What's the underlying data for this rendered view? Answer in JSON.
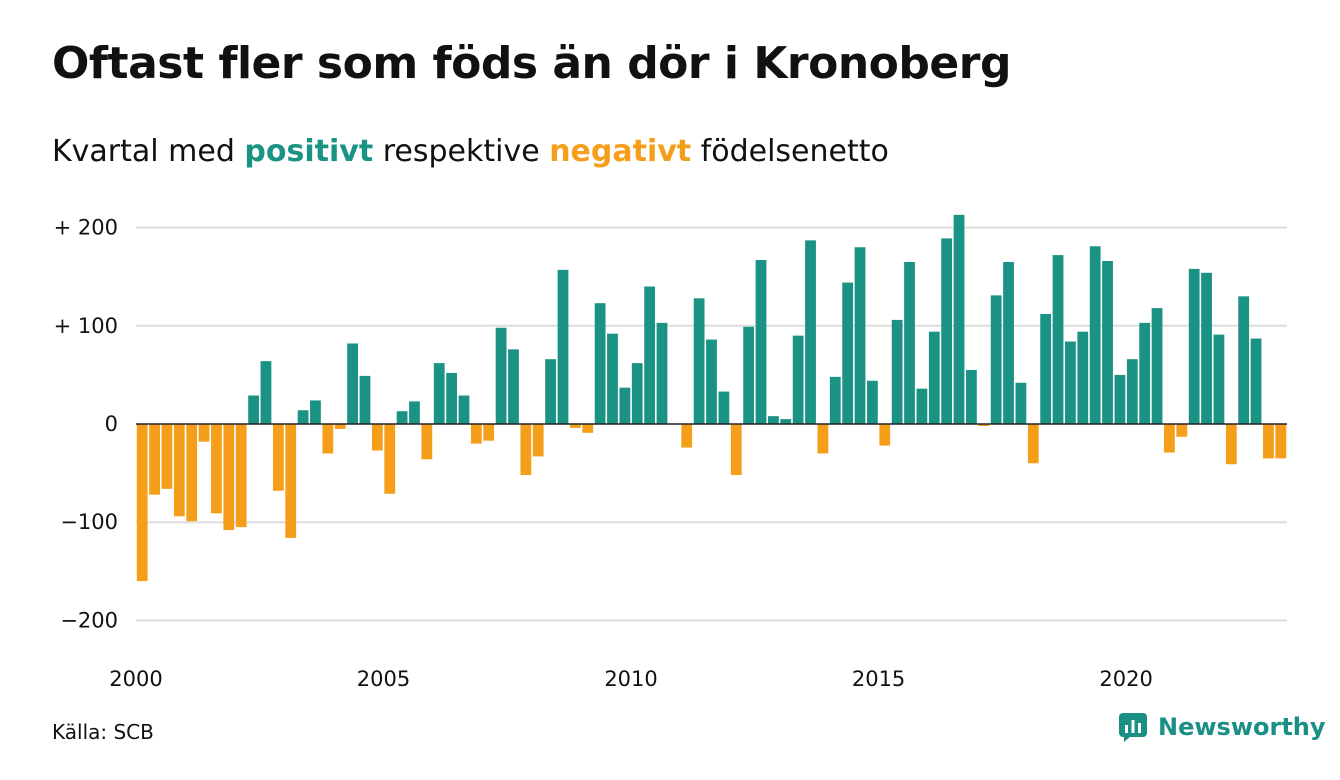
{
  "title": "Oftast fler som föds än dör i Kronoberg",
  "subtitle": {
    "prefix": "Kvartal med ",
    "positive": "positivt",
    "middle": " respektive ",
    "negative": "negativt",
    "suffix": " födelsenetto"
  },
  "colors": {
    "positive": "#1a9284",
    "negative": "#f59e1a",
    "grid": "#dddddd",
    "zero_line": "#222222",
    "text": "#111111"
  },
  "source": "Källa: SCB",
  "brand": {
    "name": "Newsworthy",
    "icon": "newsworthy-logo-icon"
  },
  "chart_data": {
    "type": "bar",
    "title": "Oftast fler som föds än dör i Kronoberg",
    "xlabel": "",
    "ylabel": "",
    "ylim": [
      -230,
      230
    ],
    "xlim": [
      2000,
      2023.25
    ],
    "yticks": [
      {
        "value": 200,
        "label": "+ 200"
      },
      {
        "value": 100,
        "label": "+ 100"
      },
      {
        "value": 0,
        "label": "0"
      },
      {
        "value": -100,
        "label": "−100"
      },
      {
        "value": -200,
        "label": "−200"
      }
    ],
    "xticks": [
      {
        "value": 2000,
        "label": "2000"
      },
      {
        "value": 2005,
        "label": "2005"
      },
      {
        "value": 2010,
        "label": "2010"
      },
      {
        "value": 2015,
        "label": "2015"
      },
      {
        "value": 2020,
        "label": "2020"
      }
    ],
    "grid": true,
    "x_unit": "quarter (year + quarter fraction)",
    "categories": [
      "2000 Q1",
      "2000 Q2",
      "2000 Q3",
      "2000 Q4",
      "2001 Q1",
      "2001 Q2",
      "2001 Q3",
      "2001 Q4",
      "2002 Q1",
      "2002 Q2",
      "2002 Q3",
      "2002 Q4",
      "2003 Q1",
      "2003 Q2",
      "2003 Q3",
      "2003 Q4",
      "2004 Q1",
      "2004 Q2",
      "2004 Q3",
      "2004 Q4",
      "2005 Q1",
      "2005 Q2",
      "2005 Q3",
      "2005 Q4",
      "2006 Q1",
      "2006 Q2",
      "2006 Q3",
      "2006 Q4",
      "2007 Q1",
      "2007 Q2",
      "2007 Q3",
      "2007 Q4",
      "2008 Q1",
      "2008 Q2",
      "2008 Q3",
      "2008 Q4",
      "2009 Q1",
      "2009 Q2",
      "2009 Q3",
      "2009 Q4",
      "2010 Q1",
      "2010 Q2",
      "2010 Q3",
      "2010 Q4",
      "2011 Q1",
      "2011 Q2",
      "2011 Q3",
      "2011 Q4",
      "2012 Q1",
      "2012 Q2",
      "2012 Q3",
      "2012 Q4",
      "2013 Q1",
      "2013 Q2",
      "2013 Q3",
      "2013 Q4",
      "2014 Q1",
      "2014 Q2",
      "2014 Q3",
      "2014 Q4",
      "2015 Q1",
      "2015 Q2",
      "2015 Q3",
      "2015 Q4",
      "2016 Q1",
      "2016 Q2",
      "2016 Q3",
      "2016 Q4",
      "2017 Q1",
      "2017 Q2",
      "2017 Q3",
      "2017 Q4",
      "2018 Q1",
      "2018 Q2",
      "2018 Q3",
      "2018 Q4",
      "2019 Q1",
      "2019 Q2",
      "2019 Q3",
      "2019 Q4",
      "2020 Q1",
      "2020 Q2",
      "2020 Q3",
      "2020 Q4",
      "2021 Q1",
      "2021 Q2",
      "2021 Q3",
      "2021 Q4",
      "2022 Q1",
      "2022 Q2",
      "2022 Q3",
      "2022 Q4",
      "2023 Q1"
    ],
    "values": [
      -160,
      -72,
      -66,
      -94,
      -99,
      -18,
      -91,
      -108,
      -105,
      29,
      64,
      -68,
      -116,
      14,
      24,
      -30,
      -5,
      82,
      49,
      -27,
      -71,
      13,
      23,
      -36,
      62,
      52,
      29,
      -20,
      -17,
      98,
      76,
      -52,
      -33,
      66,
      157,
      -4,
      -9,
      123,
      92,
      37,
      62,
      140,
      103,
      0,
      -24,
      128,
      86,
      33,
      -52,
      99,
      167,
      8,
      5,
      90,
      187,
      -30,
      48,
      144,
      180,
      44,
      -22,
      106,
      165,
      36,
      94,
      189,
      213,
      55,
      -2,
      131,
      165,
      42,
      -40,
      112,
      172,
      84,
      94,
      181,
      166,
      50,
      66,
      103,
      118,
      -29,
      -13,
      158,
      154,
      91,
      -41,
      130,
      87,
      -35,
      -35
    ]
  }
}
